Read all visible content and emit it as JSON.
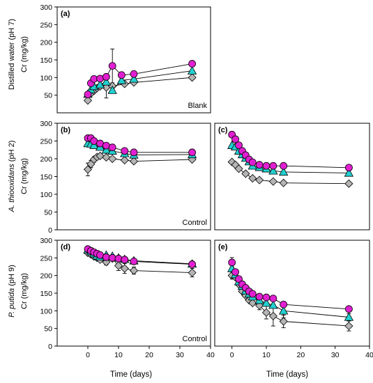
{
  "figure": {
    "row_labels": [
      {
        "main": "Distilled water (pH 7)",
        "unit": "Cr (mg/kg)"
      },
      {
        "italic": "A. thiooxidans",
        "plain": " (pH 2)",
        "unit": "Cr (mg/kg)"
      },
      {
        "italic": "P. putida",
        "plain": " (pH 9)",
        "unit": "Cr (mg/kg)"
      }
    ],
    "xlabel": "Time (days)"
  },
  "colors": {
    "circle": "#e020d0",
    "triangle": "#22d0d0",
    "diamond": "#b4b4b4",
    "line": "#000000"
  },
  "chart_data": [
    {
      "type": "line",
      "panel": "(a)",
      "annotation": "Blank",
      "xlim": [
        -10,
        40
      ],
      "ylim": [
        0,
        300
      ],
      "xticks": [],
      "yticks": [
        50,
        100,
        150,
        200,
        250,
        300
      ],
      "series": [
        {
          "marker": "circle",
          "x": [
            0,
            1,
            2,
            4,
            6,
            8,
            11,
            15,
            34
          ],
          "y": [
            52,
            84,
            96,
            97,
            102,
            133,
            107,
            110,
            139
          ],
          "err": [
            0,
            0,
            0,
            0,
            0,
            48,
            0,
            0,
            0
          ]
        },
        {
          "marker": "triangle",
          "x": [
            0,
            1,
            2,
            4,
            6,
            8,
            11,
            15,
            34
          ],
          "y": [
            53,
            66,
            75,
            80,
            88,
            64,
            92,
            96,
            119
          ],
          "err": [
            0,
            0,
            0,
            0,
            0,
            0,
            0,
            0,
            0
          ]
        },
        {
          "marker": "diamond",
          "x": [
            0,
            1,
            2,
            3,
            4,
            6,
            8,
            12,
            15,
            34
          ],
          "y": [
            35,
            55,
            62,
            70,
            75,
            72,
            76,
            82,
            86,
            100
          ],
          "err": [
            0,
            0,
            0,
            0,
            0,
            30,
            0,
            0,
            0,
            0
          ]
        }
      ]
    },
    {
      "type": "line",
      "panel": "(b)",
      "annotation": "Control",
      "xlim": [
        -10,
        40
      ],
      "ylim": [
        0,
        300
      ],
      "xticks": [],
      "yticks": [
        0,
        50,
        100,
        150,
        200,
        250,
        300
      ],
      "series": [
        {
          "marker": "circle",
          "x": [
            0,
            1,
            2,
            4,
            6,
            8,
            12,
            15,
            34
          ],
          "y": [
            258,
            258,
            250,
            243,
            237,
            232,
            222,
            218,
            218
          ],
          "err": [
            0,
            0,
            0,
            0,
            0,
            0,
            0,
            0,
            0
          ]
        },
        {
          "marker": "triangle",
          "x": [
            0,
            1,
            2,
            4,
            6,
            8,
            12,
            15,
            34
          ],
          "y": [
            243,
            242,
            238,
            233,
            225,
            222,
            215,
            211,
            212
          ],
          "err": [
            0,
            0,
            0,
            0,
            0,
            0,
            0,
            0,
            0
          ]
        },
        {
          "marker": "diamond",
          "x": [
            0,
            1,
            2,
            3,
            4,
            6,
            8,
            12,
            15,
            34
          ],
          "y": [
            170,
            185,
            198,
            205,
            208,
            204,
            200,
            196,
            193,
            198
          ],
          "err": [
            18,
            10,
            8,
            0,
            0,
            0,
            0,
            0,
            0,
            0
          ]
        }
      ]
    },
    {
      "type": "line",
      "panel": "(c)",
      "annotation": "",
      "xlim": [
        -5,
        40
      ],
      "ylim": [
        0,
        300
      ],
      "xticks": [],
      "yticks": [],
      "series": [
        {
          "marker": "circle",
          "x": [
            0,
            1,
            2,
            3,
            4,
            5,
            6,
            8,
            10,
            12,
            15,
            34
          ],
          "y": [
            268,
            255,
            238,
            222,
            210,
            198,
            190,
            183,
            180,
            180,
            180,
            175
          ],
          "err": [
            0,
            0,
            0,
            0,
            0,
            0,
            0,
            0,
            0,
            0,
            0,
            0
          ]
        },
        {
          "marker": "triangle",
          "x": [
            0,
            1,
            2,
            3,
            4,
            5,
            6,
            8,
            10,
            12,
            15,
            34
          ],
          "y": [
            238,
            234,
            222,
            212,
            202,
            192,
            180,
            176,
            172,
            166,
            163,
            160
          ],
          "err": [
            0,
            0,
            0,
            0,
            0,
            0,
            0,
            0,
            0,
            0,
            0,
            0
          ]
        },
        {
          "marker": "diamond",
          "x": [
            0,
            1,
            2,
            4,
            6,
            8,
            12,
            15,
            34
          ],
          "y": [
            191,
            183,
            172,
            158,
            145,
            140,
            136,
            132,
            130
          ],
          "err": [
            0,
            0,
            0,
            0,
            0,
            0,
            0,
            0,
            0
          ]
        }
      ]
    },
    {
      "type": "line",
      "panel": "(d)",
      "annotation": "Control",
      "xlim": [
        -10,
        40
      ],
      "ylim": [
        0,
        300
      ],
      "xticks": [
        0,
        10,
        20,
        30,
        40
      ],
      "yticks": [
        0,
        50,
        100,
        150,
        200,
        250,
        300
      ],
      "series": [
        {
          "marker": "circle",
          "x": [
            0,
            1,
            2,
            3,
            4,
            6,
            8,
            10,
            12,
            15,
            34
          ],
          "y": [
            275,
            270,
            266,
            262,
            258,
            252,
            250,
            248,
            245,
            240,
            232
          ],
          "err": [
            0,
            0,
            0,
            0,
            0,
            0,
            0,
            0,
            0,
            0,
            0
          ]
        },
        {
          "marker": "triangle",
          "x": [
            0,
            1,
            2,
            3,
            4,
            6,
            8,
            10,
            12,
            15,
            34
          ],
          "y": [
            273,
            268,
            262,
            256,
            253,
            258,
            255,
            250,
            246,
            242,
            233
          ],
          "err": [
            0,
            0,
            0,
            0,
            0,
            0,
            0,
            0,
            0,
            0,
            0
          ]
        },
        {
          "marker": "diamond",
          "x": [
            0,
            1,
            2,
            3,
            4,
            6,
            8,
            10,
            12,
            15,
            34
          ],
          "y": [
            264,
            260,
            254,
            250,
            245,
            238,
            248,
            228,
            220,
            214,
            208
          ],
          "err": [
            0,
            0,
            0,
            0,
            0,
            8,
            0,
            14,
            14,
            10,
            12
          ]
        }
      ]
    },
    {
      "type": "line",
      "panel": "(e)",
      "annotation": "",
      "xlim": [
        -5,
        40
      ],
      "ylim": [
        0,
        300
      ],
      "xticks": [
        0,
        10,
        20,
        30,
        40
      ],
      "yticks": [],
      "series": [
        {
          "marker": "circle",
          "x": [
            0,
            1,
            2,
            3,
            4,
            5,
            6,
            8,
            10,
            12,
            15,
            34
          ],
          "y": [
            237,
            210,
            190,
            175,
            165,
            155,
            148,
            140,
            138,
            135,
            118,
            105
          ],
          "err": [
            14,
            0,
            0,
            0,
            0,
            0,
            0,
            0,
            0,
            0,
            0,
            0
          ]
        },
        {
          "marker": "triangle",
          "x": [
            0,
            1,
            2,
            3,
            4,
            5,
            6,
            8,
            10,
            12,
            15,
            34
          ],
          "y": [
            220,
            203,
            183,
            170,
            157,
            148,
            140,
            130,
            122,
            116,
            100,
            82
          ],
          "err": [
            0,
            0,
            0,
            0,
            0,
            0,
            0,
            0,
            0,
            0,
            20,
            10
          ]
        },
        {
          "marker": "diamond",
          "x": [
            0,
            1,
            2,
            3,
            4,
            5,
            6,
            8,
            10,
            12,
            15,
            34
          ],
          "y": [
            200,
            195,
            175,
            155,
            143,
            130,
            122,
            115,
            95,
            85,
            70,
            57
          ],
          "err": [
            10,
            0,
            0,
            0,
            0,
            0,
            0,
            12,
            18,
            28,
            18,
            14
          ]
        }
      ]
    }
  ]
}
